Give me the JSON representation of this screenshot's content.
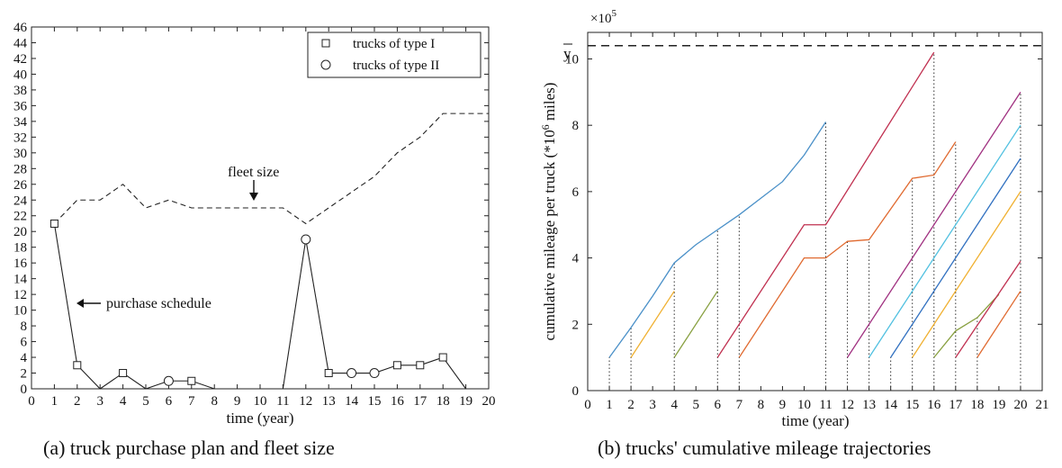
{
  "chart_data": [
    {
      "type": "line",
      "caption": "(a) truck purchase plan and fleet size",
      "xlabel": "time (year)",
      "ylabel": "",
      "xlim": [
        0,
        20
      ],
      "ylim": [
        0,
        46
      ],
      "xticks": [
        "0",
        "1",
        "2",
        "3",
        "4",
        "5",
        "6",
        "7",
        "8",
        "9",
        "10",
        "11",
        "12",
        "13",
        "14",
        "15",
        "16",
        "17",
        "18",
        "19",
        "20"
      ],
      "yticks": [
        "0",
        "2",
        "4",
        "6",
        "8",
        "10",
        "12",
        "14",
        "16",
        "18",
        "20",
        "22",
        "24",
        "26",
        "28",
        "30",
        "32",
        "34",
        "36",
        "38",
        "40",
        "42",
        "44",
        "46"
      ],
      "legend": {
        "position": "top-right",
        "entries": [
          "trucks of type I",
          "trucks of type II"
        ]
      },
      "annotations": [
        "fleet size",
        "purchase schedule"
      ],
      "series": [
        {
          "name": "purchase schedule",
          "x": [
            1,
            2,
            3,
            4,
            5,
            6,
            7,
            8,
            9,
            10,
            11,
            12,
            13,
            14,
            15,
            16,
            17,
            18,
            19
          ],
          "y": [
            21,
            3,
            0,
            2,
            0,
            1,
            1,
            0,
            0,
            0,
            0,
            19,
            2,
            2,
            2,
            3,
            3,
            4,
            0
          ]
        },
        {
          "name": "fleet size",
          "x": [
            1,
            2,
            3,
            4,
            5,
            6,
            7,
            8,
            9,
            10,
            11,
            12,
            13,
            14,
            15,
            16,
            17,
            18,
            19,
            20
          ],
          "y": [
            21,
            24,
            24,
            26,
            23,
            24,
            23,
            23,
            23,
            23,
            23,
            21,
            23,
            25,
            27,
            30,
            32,
            35,
            35,
            35
          ]
        }
      ],
      "markers_type_I": {
        "x": [
          1,
          2,
          4,
          7,
          13,
          16,
          17,
          18
        ],
        "y": [
          21,
          3,
          2,
          1,
          2,
          3,
          3,
          4
        ]
      },
      "markers_type_II": {
        "x": [
          6,
          12,
          14,
          15
        ],
        "y": [
          1,
          19,
          2,
          2
        ]
      }
    },
    {
      "type": "line",
      "caption": "(b) trucks' cumulative mileage trajectories",
      "xlabel": "time (year)",
      "ylabel_main": "cumulative mileage per truck (*10",
      "ylabel_exp": "6",
      "ylabel_tail": " miles)",
      "scale_label": "×10",
      "scale_exp": "5",
      "ybar_label": "y",
      "ybar_value": 10.4,
      "xlim": [
        0,
        21
      ],
      "ylim": [
        0,
        10.8
      ],
      "xticks": [
        "0",
        "1",
        "2",
        "3",
        "4",
        "5",
        "6",
        "7",
        "8",
        "9",
        "10",
        "11",
        "12",
        "13",
        "14",
        "15",
        "16",
        "17",
        "18",
        "19",
        "20",
        "21"
      ],
      "yticks": [
        "0",
        "2",
        "4",
        "6",
        "8",
        "10"
      ],
      "series": [
        {
          "color": "#4a90c8",
          "x": [
            1,
            2,
            3,
            4,
            5,
            6,
            7,
            8,
            9,
            10,
            11
          ],
          "y": [
            1,
            1.9,
            2.85,
            3.85,
            4.4,
            4.85,
            5.3,
            5.8,
            6.3,
            7.1,
            8.1
          ]
        },
        {
          "color": "#f0b030",
          "x": [
            2,
            4
          ],
          "y": [
            1,
            3
          ]
        },
        {
          "color": "#88a040",
          "x": [
            4,
            6
          ],
          "y": [
            1,
            3
          ]
        },
        {
          "color": "#c03050",
          "x": [
            6,
            10,
            11,
            16
          ],
          "y": [
            1,
            5,
            5,
            10.2
          ]
        },
        {
          "color": "#e06a30",
          "x": [
            7,
            10,
            11,
            12,
            13,
            15,
            16,
            17
          ],
          "y": [
            1,
            4,
            4,
            4.5,
            4.55,
            6.4,
            6.5,
            7.5
          ]
        },
        {
          "color": "#a03080",
          "x": [
            12,
            20
          ],
          "y": [
            1,
            9
          ]
        },
        {
          "color": "#50c0e0",
          "x": [
            13,
            20
          ],
          "y": [
            1,
            8
          ]
        },
        {
          "color": "#3070c0",
          "x": [
            14,
            20
          ],
          "y": [
            1,
            7
          ]
        },
        {
          "color": "#f0b030",
          "x": [
            15,
            20
          ],
          "y": [
            1,
            6
          ]
        },
        {
          "color": "#88a040",
          "x": [
            16,
            17,
            18,
            19
          ],
          "y": [
            1,
            1.8,
            2.2,
            2.9
          ]
        },
        {
          "color": "#c03050",
          "x": [
            17,
            20
          ],
          "y": [
            1,
            3.9
          ]
        },
        {
          "color": "#e06a30",
          "x": [
            18,
            20
          ],
          "y": [
            1,
            3
          ]
        }
      ],
      "vlines": [
        1,
        2,
        4,
        6,
        7,
        11,
        12,
        13,
        14,
        15,
        16,
        17,
        18,
        20
      ]
    }
  ]
}
